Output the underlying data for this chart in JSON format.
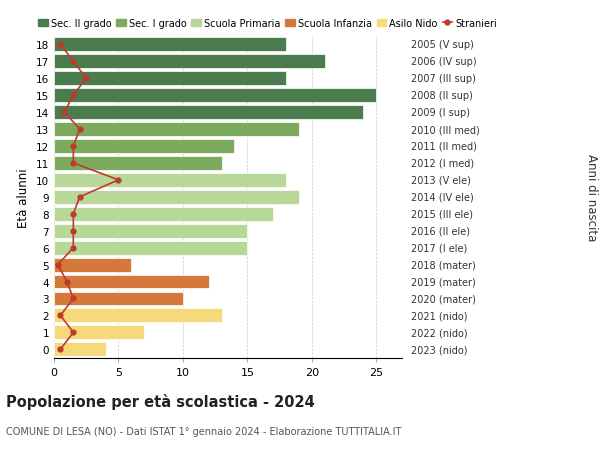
{
  "ages": [
    18,
    17,
    16,
    15,
    14,
    13,
    12,
    11,
    10,
    9,
    8,
    7,
    6,
    5,
    4,
    3,
    2,
    1,
    0
  ],
  "right_labels": [
    "2005 (V sup)",
    "2006 (IV sup)",
    "2007 (III sup)",
    "2008 (II sup)",
    "2009 (I sup)",
    "2010 (III med)",
    "2011 (II med)",
    "2012 (I med)",
    "2013 (V ele)",
    "2014 (IV ele)",
    "2015 (III ele)",
    "2016 (II ele)",
    "2017 (I ele)",
    "2018 (mater)",
    "2019 (mater)",
    "2020 (mater)",
    "2021 (nido)",
    "2022 (nido)",
    "2023 (nido)"
  ],
  "bar_values": [
    18,
    21,
    18,
    25,
    24,
    19,
    14,
    13,
    18,
    19,
    17,
    15,
    15,
    6,
    12,
    10,
    13,
    7,
    4
  ],
  "bar_colors": [
    "#4a7c4e",
    "#4a7c4e",
    "#4a7c4e",
    "#4a7c4e",
    "#4a7c4e",
    "#7dab5e",
    "#7dab5e",
    "#7dab5e",
    "#b8d89a",
    "#b8d89a",
    "#b8d89a",
    "#b8d89a",
    "#b8d89a",
    "#d4793a",
    "#d4793a",
    "#d4793a",
    "#f5d97a",
    "#f5d97a",
    "#f5d97a"
  ],
  "stranieri_values": [
    0.5,
    1.5,
    2.5,
    1.5,
    0.8,
    2.0,
    1.5,
    1.5,
    5.0,
    2.0,
    1.5,
    1.5,
    1.5,
    0.3,
    1.0,
    1.5,
    0.5,
    1.5,
    0.5
  ],
  "legend_labels": [
    "Sec. II grado",
    "Sec. I grado",
    "Scuola Primaria",
    "Scuola Infanzia",
    "Asilo Nido",
    "Stranieri"
  ],
  "legend_colors": [
    "#4a7c4e",
    "#7dab5e",
    "#b8d89a",
    "#d4793a",
    "#f5d97a",
    "#c0392b"
  ],
  "title": "Popolazione per età scolastica - 2024",
  "subtitle": "COMUNE DI LESA (NO) - Dati ISTAT 1° gennaio 2024 - Elaborazione TUTTITALIA.IT",
  "ylabel": "Età alunni",
  "right_ylabel": "Anni di nascita",
  "xlabel_vals": [
    0,
    5,
    10,
    15,
    20,
    25
  ],
  "xlim": [
    0,
    27
  ],
  "background_color": "#ffffff",
  "grid_color": "#cccccc"
}
